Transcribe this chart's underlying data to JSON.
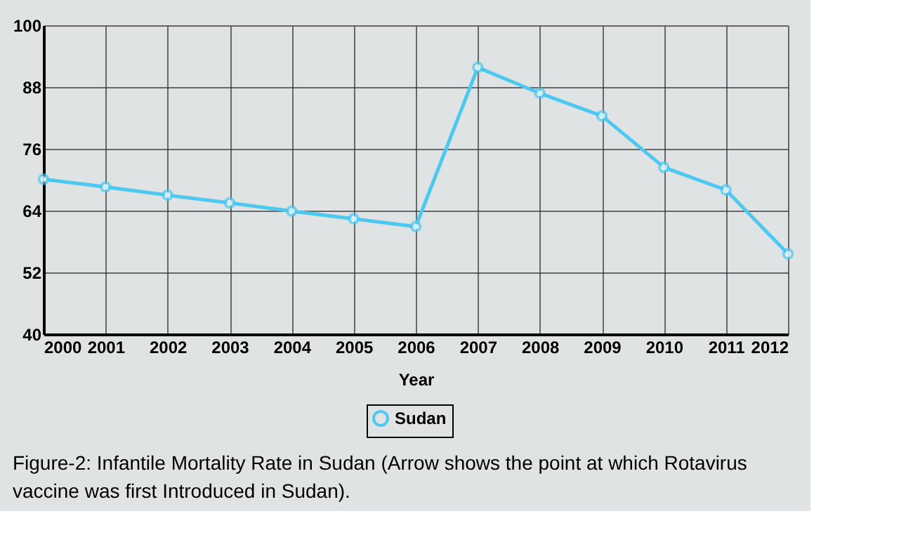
{
  "chart_data": {
    "type": "line",
    "xlabel": "Year",
    "x": [
      2000,
      2001,
      2002,
      2003,
      2004,
      2005,
      2006,
      2007,
      2008,
      2009,
      2010,
      2011,
      2012
    ],
    "series": [
      {
        "name": "Sudan",
        "color": "#4dc8f0",
        "values": [
          70.1,
          68.6,
          67.0,
          65.5,
          63.9,
          62.4,
          60.9,
          91.8,
          86.8,
          82.4,
          72.4,
          68.0,
          55.6
        ]
      }
    ],
    "xlim": [
      2000,
      2012
    ],
    "xticks": [
      2000,
      2001,
      2002,
      2003,
      2004,
      2005,
      2006,
      2007,
      2008,
      2009,
      2010,
      2011,
      2012
    ],
    "ylim": [
      40,
      100
    ],
    "yticks": [
      40,
      52,
      64,
      76,
      88,
      100
    ],
    "grid": true,
    "legend": "bottom",
    "marker": "circle",
    "line_style": "solid",
    "annotations": [
      "Figure-2: Infantile Mortality Rate in Sudan (Arrow shows the point at which Rotavirus vaccine was first Introduced in Sudan)."
    ]
  }
}
